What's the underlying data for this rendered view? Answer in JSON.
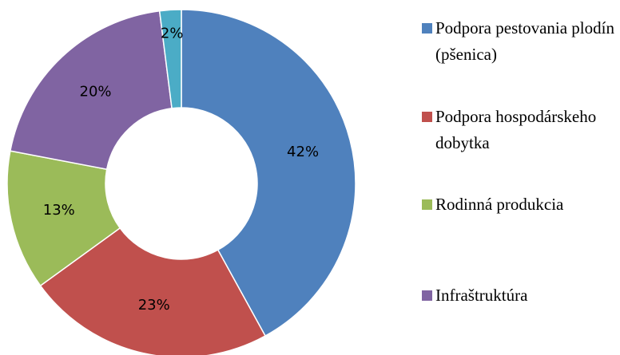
{
  "chart_data": {
    "type": "donut",
    "categories": [
      "Podpora pestovania plodín (pšenica)",
      "Podpora hospodárskeho dobytka",
      "Rodinná produkcia",
      "Infraštruktúra",
      null
    ],
    "values": [
      42,
      23,
      13,
      20,
      2
    ],
    "value_labels": [
      "42%",
      "23%",
      "13%",
      "20%",
      "2%"
    ],
    "colors": [
      "#4f81bd",
      "#c0504d",
      "#9bbb59",
      "#8064a2",
      "#4bacc6"
    ],
    "legend": "right"
  }
}
